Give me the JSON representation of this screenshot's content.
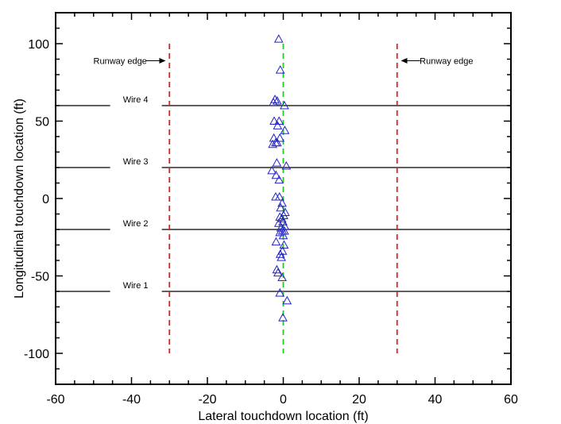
{
  "chart_data": {
    "type": "scatter",
    "xlabel": "Lateral touchdown location (ft)",
    "ylabel": "Longitudinal touchdown location (ft)",
    "xlim": [
      -60,
      60
    ],
    "ylim": [
      -120,
      120
    ],
    "xticks": [
      -60,
      -40,
      -20,
      0,
      20,
      40,
      60
    ],
    "yticks": [
      -100,
      -50,
      0,
      50,
      100
    ],
    "grid": false,
    "marker": "triangle-open",
    "marker_color": "#2323c8",
    "points": [
      [
        -1.2,
        103
      ],
      [
        -0.8,
        83
      ],
      [
        -2.2,
        64
      ],
      [
        -2.6,
        62
      ],
      [
        -1.6,
        63
      ],
      [
        0.3,
        60
      ],
      [
        -2.4,
        50
      ],
      [
        -1.1,
        50
      ],
      [
        -1.5,
        47
      ],
      [
        0.4,
        44
      ],
      [
        -2.5,
        39
      ],
      [
        -0.9,
        39
      ],
      [
        -2.0,
        36
      ],
      [
        -2.8,
        35
      ],
      [
        -1.6,
        36
      ],
      [
        -1.7,
        23
      ],
      [
        0.8,
        21
      ],
      [
        -3.0,
        18
      ],
      [
        -1.9,
        15
      ],
      [
        -1.1,
        12
      ],
      [
        -2.0,
        1
      ],
      [
        -1.0,
        1
      ],
      [
        -0.3,
        -3
      ],
      [
        -0.7,
        -6
      ],
      [
        0.5,
        -9
      ],
      [
        0.1,
        -11
      ],
      [
        -0.9,
        -12
      ],
      [
        -0.4,
        -13
      ],
      [
        -0.1,
        -15
      ],
      [
        -1.2,
        -16
      ],
      [
        0.4,
        -18
      ],
      [
        -0.6,
        -19
      ],
      [
        -0.2,
        -21
      ],
      [
        0.3,
        -21
      ],
      [
        -0.9,
        -22
      ],
      [
        0.0,
        -24
      ],
      [
        -1.9,
        -28
      ],
      [
        0.2,
        -30
      ],
      [
        -0.2,
        -34
      ],
      [
        -0.8,
        -36
      ],
      [
        -0.5,
        -38
      ],
      [
        -1.7,
        -46
      ],
      [
        -1.4,
        -48
      ],
      [
        -0.3,
        -51
      ],
      [
        -0.9,
        -61
      ],
      [
        1.0,
        -66
      ],
      [
        -0.1,
        -77
      ]
    ],
    "reference_lines": {
      "runway_edges": {
        "x": [
          -30,
          30
        ],
        "y_range": [
          -100,
          100
        ],
        "color": "#dd2222",
        "style": "dashed"
      },
      "centerline": {
        "x": 0,
        "y_range": [
          -100,
          100
        ],
        "color": "#22cc22",
        "style": "dashed"
      },
      "wires": [
        {
          "label": "Wire 4",
          "y": 60,
          "label_x": -45
        },
        {
          "label": "Wire 3",
          "y": 20,
          "label_x": -45
        },
        {
          "label": "Wire 2",
          "y": -20,
          "label_x": -45
        },
        {
          "label": "Wire 1",
          "y": -60,
          "label_x": -45
        }
      ]
    },
    "annotations": [
      {
        "text": "Runway edge",
        "x": -43,
        "y": 89,
        "arrow_to_x": -31,
        "side": "left"
      },
      {
        "text": "Runway edge",
        "x": 43,
        "y": 89,
        "arrow_to_x": 31,
        "side": "right"
      }
    ]
  }
}
